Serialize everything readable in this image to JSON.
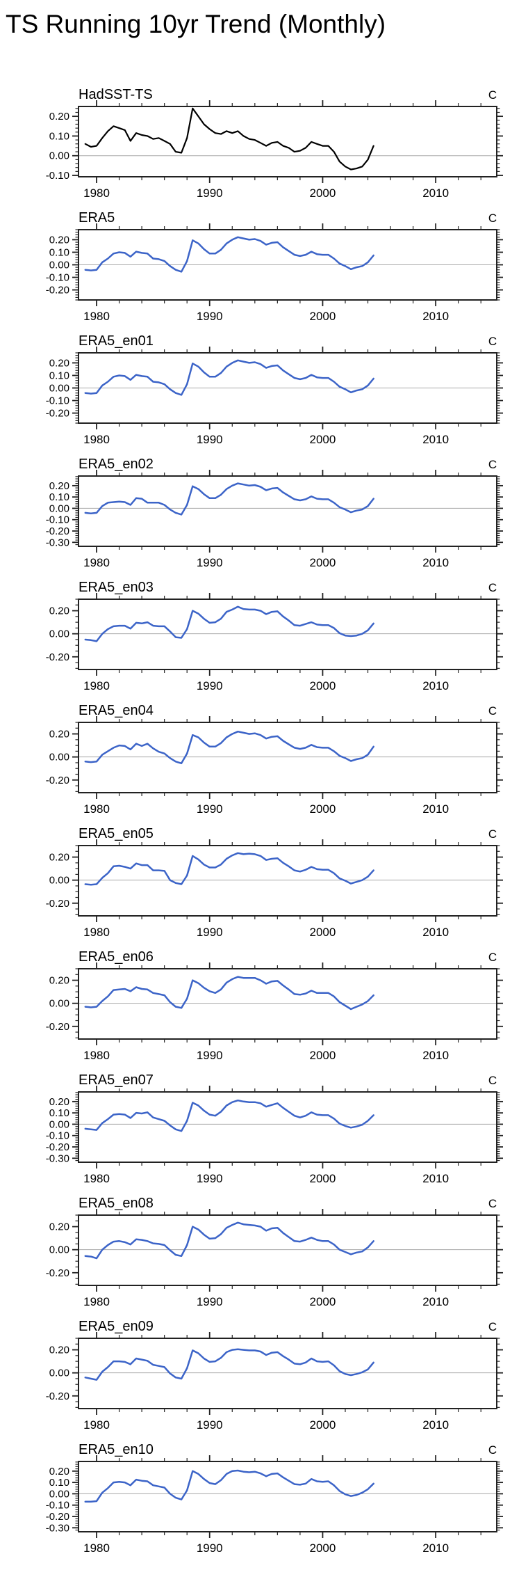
{
  "page_title": "TS Running 10yr Trend (Monthly)",
  "units_label": "C",
  "colors": {
    "hadsst_line": "#000000",
    "era5_line": "#3c64c8",
    "zero_line": "#a8a8a8",
    "frame": "#222222",
    "tick": "#222222",
    "text": "#000000"
  },
  "chart_data": {
    "type": "line",
    "title": "TS Running 10yr Trend (Monthly)",
    "ylabel_units": "C",
    "xlim": [
      1978.4,
      2015.4
    ],
    "x_major_ticks": [
      1980,
      1990,
      2000,
      2010
    ],
    "x_major_tick_labels": [
      "1980",
      "1990",
      "2000",
      "2010"
    ],
    "x_minor_step_years": 2,
    "grid": "zero-line-only",
    "legend": "none",
    "x": [
      1979,
      1979.5,
      1980,
      1980.5,
      1981,
      1981.5,
      1982,
      1982.5,
      1983,
      1983.5,
      1984,
      1984.5,
      1985,
      1985.5,
      1986,
      1986.5,
      1987,
      1987.5,
      1988,
      1988.5,
      1989,
      1989.5,
      1990,
      1990.5,
      1991,
      1991.5,
      1992,
      1992.5,
      1993,
      1993.5,
      1994,
      1994.5,
      1995,
      1995.5,
      1996,
      1996.5,
      1997,
      1997.5,
      1998,
      1998.5,
      1999,
      1999.5,
      2000,
      2000.5,
      2001,
      2001.5,
      2002,
      2002.5,
      2003,
      2003.5,
      2004,
      2004.5
    ],
    "panels": [
      {
        "title": "HadSST-TS",
        "color_key": "hadsst_line",
        "ylim": [
          -0.107,
          0.25
        ],
        "yticks": [
          0.2,
          0.1,
          0,
          -0.1
        ],
        "ytick_labels": [
          "0.20",
          "0.10",
          "0.00",
          "-0.10"
        ],
        "y_minor_step": 0.02,
        "values": [
          0.06,
          0.045,
          0.05,
          0.09,
          0.125,
          0.15,
          0.14,
          0.13,
          0.075,
          0.115,
          0.105,
          0.1,
          0.085,
          0.09,
          0.075,
          0.06,
          0.02,
          0.015,
          0.09,
          0.24,
          0.2,
          0.16,
          0.135,
          0.115,
          0.11,
          0.125,
          0.115,
          0.125,
          0.1,
          0.085,
          0.08,
          0.065,
          0.05,
          0.065,
          0.07,
          0.05,
          0.04,
          0.02,
          0.025,
          0.04,
          0.07,
          0.06,
          0.05,
          0.05,
          0.02,
          -0.03,
          -0.055,
          -0.07,
          -0.065,
          -0.055,
          -0.02,
          0.05
        ]
      },
      {
        "title": "ERA5",
        "color_key": "era5_line",
        "ylim": [
          -0.28,
          0.28
        ],
        "yticks": [
          0.2,
          0.1,
          0,
          -0.1,
          -0.2
        ],
        "ytick_labels": [
          "0.20",
          "0.10",
          "0.00",
          "-0.10",
          "-0.20"
        ],
        "y_minor_step": 0.02,
        "values": [
          -0.04,
          -0.045,
          -0.04,
          0.02,
          0.05,
          0.09,
          0.1,
          0.095,
          0.065,
          0.105,
          0.095,
          0.09,
          0.05,
          0.045,
          0.03,
          -0.01,
          -0.04,
          -0.055,
          0.03,
          0.195,
          0.17,
          0.125,
          0.09,
          0.09,
          0.12,
          0.17,
          0.2,
          0.22,
          0.21,
          0.2,
          0.205,
          0.19,
          0.16,
          0.175,
          0.18,
          0.14,
          0.11,
          0.08,
          0.07,
          0.08,
          0.105,
          0.085,
          0.08,
          0.08,
          0.05,
          0.01,
          -0.01,
          -0.035,
          -0.02,
          -0.01,
          0.02,
          0.075
        ]
      },
      {
        "title": "ERA5_en01",
        "color_key": "era5_line",
        "ylim": [
          -0.28,
          0.28
        ],
        "yticks": [
          0.2,
          0.1,
          0,
          -0.1,
          -0.2
        ],
        "ytick_labels": [
          "0.20",
          "0.10",
          "0.00",
          "-0.10",
          "-0.20"
        ],
        "y_minor_step": 0.02,
        "values": [
          -0.04,
          -0.045,
          -0.04,
          0.02,
          0.05,
          0.09,
          0.1,
          0.095,
          0.065,
          0.105,
          0.095,
          0.09,
          0.05,
          0.045,
          0.03,
          -0.01,
          -0.04,
          -0.055,
          0.03,
          0.195,
          0.17,
          0.125,
          0.09,
          0.09,
          0.12,
          0.17,
          0.2,
          0.22,
          0.21,
          0.2,
          0.205,
          0.19,
          0.16,
          0.175,
          0.18,
          0.14,
          0.11,
          0.08,
          0.07,
          0.08,
          0.105,
          0.085,
          0.08,
          0.08,
          0.05,
          0.01,
          -0.01,
          -0.035,
          -0.02,
          -0.01,
          0.02,
          0.075
        ]
      },
      {
        "title": "ERA5_en02",
        "color_key": "era5_line",
        "ylim": [
          -0.335,
          0.285
        ],
        "yticks": [
          0.2,
          0.1,
          0,
          -0.1,
          -0.2,
          -0.3
        ],
        "ytick_labels": [
          "0.20",
          "0.10",
          "0.00",
          "-0.10",
          "-0.20",
          "-0.30"
        ],
        "y_minor_step": 0.02,
        "values": [
          -0.04,
          -0.045,
          -0.04,
          0.02,
          0.05,
          0.055,
          0.06,
          0.055,
          0.03,
          0.09,
          0.085,
          0.05,
          0.05,
          0.05,
          0.03,
          -0.01,
          -0.04,
          -0.055,
          0.03,
          0.195,
          0.17,
          0.125,
          0.09,
          0.09,
          0.12,
          0.17,
          0.2,
          0.22,
          0.21,
          0.2,
          0.205,
          0.19,
          0.16,
          0.175,
          0.18,
          0.14,
          0.11,
          0.08,
          0.07,
          0.08,
          0.105,
          0.085,
          0.08,
          0.08,
          0.05,
          0.01,
          -0.01,
          -0.035,
          -0.02,
          -0.01,
          0.02,
          0.085
        ]
      },
      {
        "title": "ERA5_en03",
        "color_key": "era5_line",
        "ylim": [
          -0.31,
          0.3
        ],
        "yticks": [
          0.2,
          0,
          -0.2
        ],
        "ytick_labels": [
          "0.20",
          "0.00",
          "-0.20"
        ],
        "y_minor_step": 0.05,
        "values": [
          -0.05,
          -0.055,
          -0.065,
          0,
          0.04,
          0.065,
          0.07,
          0.07,
          0.045,
          0.095,
          0.09,
          0.1,
          0.07,
          0.065,
          0.065,
          0.02,
          -0.03,
          -0.035,
          0.04,
          0.2,
          0.175,
          0.13,
          0.095,
          0.1,
          0.13,
          0.19,
          0.21,
          0.235,
          0.215,
          0.21,
          0.21,
          0.2,
          0.17,
          0.19,
          0.195,
          0.15,
          0.115,
          0.075,
          0.07,
          0.085,
          0.1,
          0.08,
          0.075,
          0.075,
          0.05,
          0.005,
          -0.015,
          -0.02,
          -0.015,
          0,
          0.03,
          0.09
        ]
      },
      {
        "title": "ERA5_en04",
        "color_key": "era5_line",
        "ylim": [
          -0.31,
          0.3
        ],
        "yticks": [
          0.2,
          0,
          -0.2
        ],
        "ytick_labels": [
          "0.20",
          "0.00",
          "-0.20"
        ],
        "y_minor_step": 0.05,
        "values": [
          -0.04,
          -0.045,
          -0.04,
          0.02,
          0.05,
          0.08,
          0.1,
          0.095,
          0.065,
          0.115,
          0.095,
          0.115,
          0.075,
          0.045,
          0.03,
          -0.01,
          -0.04,
          -0.055,
          0.03,
          0.19,
          0.17,
          0.125,
          0.09,
          0.09,
          0.12,
          0.17,
          0.2,
          0.22,
          0.21,
          0.2,
          0.205,
          0.19,
          0.16,
          0.175,
          0.18,
          0.14,
          0.11,
          0.08,
          0.07,
          0.08,
          0.105,
          0.085,
          0.08,
          0.08,
          0.05,
          0.01,
          -0.01,
          -0.035,
          -0.02,
          -0.01,
          0.02,
          0.09
        ]
      },
      {
        "title": "ERA5_en05",
        "color_key": "era5_line",
        "ylim": [
          -0.31,
          0.3
        ],
        "yticks": [
          0.2,
          0,
          -0.2
        ],
        "ytick_labels": [
          "0.20",
          "0.00",
          "-0.20"
        ],
        "y_minor_step": 0.05,
        "values": [
          -0.035,
          -0.04,
          -0.035,
          0.02,
          0.06,
          0.12,
          0.125,
          0.115,
          0.1,
          0.145,
          0.13,
          0.13,
          0.085,
          0.085,
          0.08,
          0,
          -0.025,
          -0.035,
          0.04,
          0.21,
          0.18,
          0.135,
          0.11,
          0.11,
          0.135,
          0.185,
          0.215,
          0.235,
          0.225,
          0.23,
          0.225,
          0.21,
          0.175,
          0.185,
          0.19,
          0.15,
          0.12,
          0.085,
          0.075,
          0.09,
          0.115,
          0.095,
          0.09,
          0.09,
          0.06,
          0.015,
          -0.005,
          -0.03,
          -0.015,
          0,
          0.03,
          0.085
        ]
      },
      {
        "title": "ERA5_en06",
        "color_key": "era5_line",
        "ylim": [
          -0.31,
          0.3
        ],
        "yticks": [
          0.2,
          0,
          -0.2
        ],
        "ytick_labels": [
          "0.20",
          "0.00",
          "-0.20"
        ],
        "y_minor_step": 0.05,
        "values": [
          -0.03,
          -0.035,
          -0.03,
          0.02,
          0.06,
          0.115,
          0.12,
          0.125,
          0.105,
          0.14,
          0.125,
          0.12,
          0.09,
          0.08,
          0.07,
          0.01,
          -0.03,
          -0.04,
          0.04,
          0.2,
          0.175,
          0.135,
          0.105,
          0.09,
          0.12,
          0.18,
          0.21,
          0.23,
          0.22,
          0.22,
          0.22,
          0.2,
          0.17,
          0.19,
          0.195,
          0.155,
          0.12,
          0.08,
          0.075,
          0.085,
          0.11,
          0.09,
          0.09,
          0.09,
          0.06,
          0.01,
          -0.02,
          -0.05,
          -0.03,
          -0.01,
          0.02,
          0.07
        ]
      },
      {
        "title": "ERA5_en07",
        "color_key": "era5_line",
        "ylim": [
          -0.335,
          0.285
        ],
        "yticks": [
          0.2,
          0.1,
          0,
          -0.1,
          -0.2,
          -0.3
        ],
        "ytick_labels": [
          "0.20",
          "0.10",
          "0.00",
          "-0.10",
          "-0.20",
          "-0.30"
        ],
        "y_minor_step": 0.02,
        "values": [
          -0.04,
          -0.045,
          -0.05,
          0.01,
          0.045,
          0.085,
          0.09,
          0.085,
          0.055,
          0.1,
          0.095,
          0.105,
          0.06,
          0.045,
          0.03,
          -0.01,
          -0.045,
          -0.06,
          0.03,
          0.19,
          0.165,
          0.12,
          0.085,
          0.075,
          0.11,
          0.165,
          0.195,
          0.21,
          0.2,
          0.195,
          0.195,
          0.185,
          0.155,
          0.17,
          0.185,
          0.145,
          0.11,
          0.075,
          0.06,
          0.075,
          0.105,
          0.085,
          0.08,
          0.08,
          0.05,
          0.005,
          -0.015,
          -0.03,
          -0.02,
          -0.005,
          0.03,
          0.08
        ]
      },
      {
        "title": "ERA5_en08",
        "color_key": "era5_line",
        "ylim": [
          -0.31,
          0.3
        ],
        "yticks": [
          0.2,
          0,
          -0.2
        ],
        "ytick_labels": [
          "0.20",
          "0.00",
          "-0.20"
        ],
        "y_minor_step": 0.05,
        "values": [
          -0.055,
          -0.06,
          -0.075,
          0,
          0.04,
          0.07,
          0.075,
          0.065,
          0.045,
          0.09,
          0.085,
          0.075,
          0.055,
          0.05,
          0.04,
          -0.005,
          -0.045,
          -0.055,
          0.04,
          0.2,
          0.175,
          0.13,
          0.095,
          0.1,
          0.135,
          0.19,
          0.215,
          0.235,
          0.22,
          0.215,
          0.21,
          0.2,
          0.165,
          0.185,
          0.19,
          0.145,
          0.11,
          0.075,
          0.07,
          0.085,
          0.105,
          0.085,
          0.075,
          0.075,
          0.045,
          0,
          -0.02,
          -0.04,
          -0.025,
          -0.015,
          0.02,
          0.075
        ]
      },
      {
        "title": "ERA5_en09",
        "color_key": "era5_line",
        "ylim": [
          -0.31,
          0.3
        ],
        "yticks": [
          0.2,
          0,
          -0.2
        ],
        "ytick_labels": [
          "0.20",
          "0.00",
          "-0.20"
        ],
        "y_minor_step": 0.05,
        "values": [
          -0.04,
          -0.05,
          -0.06,
          0.01,
          0.05,
          0.1,
          0.1,
          0.095,
          0.075,
          0.125,
          0.115,
          0.105,
          0.07,
          0.06,
          0.05,
          -0.005,
          -0.04,
          -0.05,
          0.04,
          0.195,
          0.17,
          0.125,
          0.095,
          0.1,
          0.13,
          0.18,
          0.2,
          0.205,
          0.2,
          0.195,
          0.195,
          0.185,
          0.155,
          0.175,
          0.18,
          0.145,
          0.115,
          0.08,
          0.075,
          0.09,
          0.125,
          0.1,
          0.095,
          0.1,
          0.065,
          0.015,
          -0.01,
          -0.02,
          -0.01,
          0.005,
          0.03,
          0.09
        ]
      },
      {
        "title": "ERA5_en10",
        "color_key": "era5_line",
        "ylim": [
          -0.335,
          0.285
        ],
        "yticks": [
          0.2,
          0.1,
          0,
          -0.1,
          -0.2,
          -0.3
        ],
        "ytick_labels": [
          "0.20",
          "0.10",
          "0.00",
          "-0.10",
          "-0.20",
          "-0.30"
        ],
        "y_minor_step": 0.02,
        "values": [
          -0.07,
          -0.07,
          -0.065,
          0.01,
          0.05,
          0.1,
          0.105,
          0.1,
          0.075,
          0.125,
          0.115,
          0.11,
          0.075,
          0.065,
          0.055,
          0,
          -0.035,
          -0.05,
          0.03,
          0.2,
          0.175,
          0.13,
          0.095,
          0.085,
          0.12,
          0.175,
          0.2,
          0.205,
          0.195,
          0.19,
          0.195,
          0.18,
          0.155,
          0.175,
          0.18,
          0.145,
          0.115,
          0.085,
          0.08,
          0.09,
          0.13,
          0.11,
          0.105,
          0.11,
          0.075,
          0.025,
          -0.005,
          -0.02,
          -0.01,
          0.01,
          0.04,
          0.09
        ]
      }
    ]
  }
}
